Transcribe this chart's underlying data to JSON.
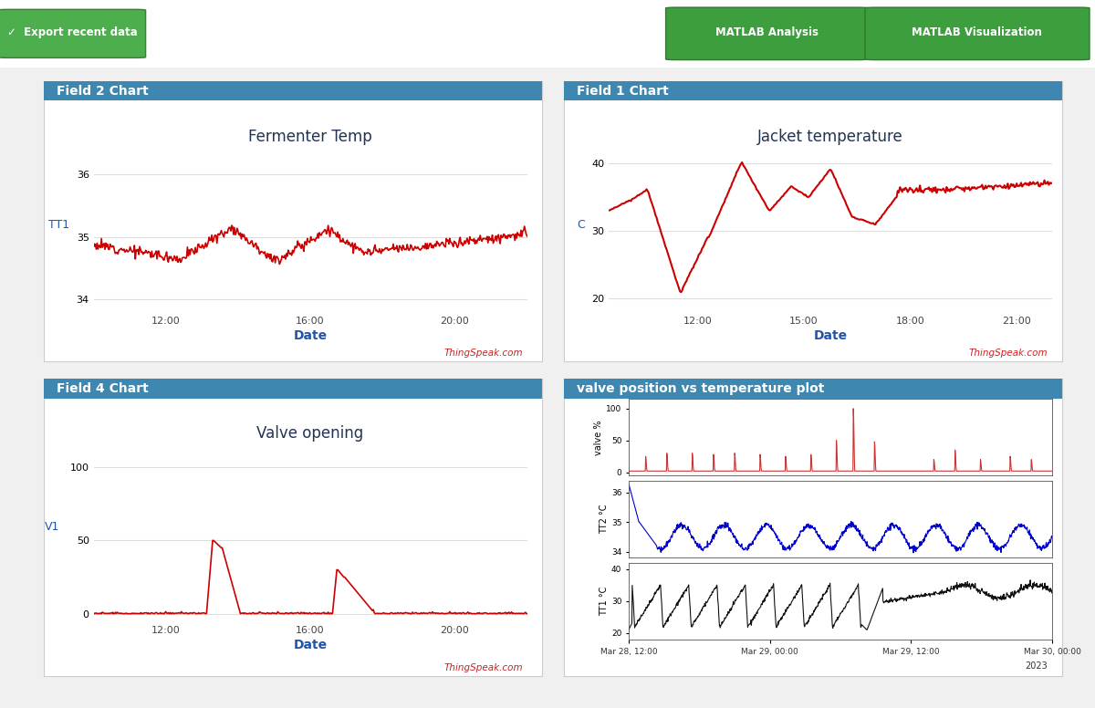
{
  "bg_color": "#f0f0f0",
  "panel_header_color": "#3d87b0",
  "panel_header_text_color": "#ffffff",
  "panel_bg_color": "#ffffff",
  "panel_border_color": "#cccccc",
  "export_btn_color": "#4cae4c",
  "matlab_btn_color": "#3d9e3d",
  "top_bar_color": "#ffffff",
  "chart1_title": "Fermenter Temp",
  "chart1_ylabel": "TT1",
  "chart1_xlabel": "Date",
  "chart1_panel": "Field 2 Chart",
  "chart1_ylim": [
    33.8,
    36.4
  ],
  "chart1_yticks": [
    34,
    35,
    36
  ],
  "chart1_xticks": [
    "12:00",
    "16:00",
    "20:00"
  ],
  "chart1_color": "#cc0000",
  "chart1_thingspeak": "ThingSpeak.com",
  "chart2_title": "Jacket temperature",
  "chart2_ylabel": "C",
  "chart2_xlabel": "Date",
  "chart2_panel": "Field 1 Chart",
  "chart2_ylim": [
    18,
    42
  ],
  "chart2_yticks": [
    20,
    30,
    40
  ],
  "chart2_xticks": [
    "12:00",
    "15:00",
    "18:00",
    "21:00"
  ],
  "chart2_color": "#cc0000",
  "chart2_thingspeak": "ThingSpeak.com",
  "chart3_title": "Valve opening",
  "chart3_ylabel": "V1",
  "chart3_xlabel": "Date",
  "chart3_panel": "Field 4 Chart",
  "chart3_ylim": [
    -5,
    115
  ],
  "chart3_yticks": [
    0,
    50,
    100
  ],
  "chart3_xticks": [
    "12:00",
    "16:00",
    "20:00"
  ],
  "chart3_color": "#cc0000",
  "chart3_thingspeak": "ThingSpeak.com",
  "chart4_panel": "valve position vs temperature plot",
  "chart4_ylabel1": "valve %",
  "chart4_ylabel2": "TT2 °C",
  "chart4_ylabel3": "TT1 °C",
  "chart4_color1": "#cc3333",
  "chart4_color2": "#0000cc",
  "chart4_color3": "#111111",
  "chart4_ylim1": [
    -5,
    115
  ],
  "chart4_ylim2": [
    33.8,
    36.4
  ],
  "chart4_ylim3": [
    18,
    42
  ],
  "chart4_yticks1": [
    0,
    50,
    100
  ],
  "chart4_yticks2": [
    34,
    35,
    36
  ],
  "chart4_yticks3": [
    20,
    30,
    40
  ],
  "chart4_xtick_labels": [
    "Mar 28, 12:00",
    "Mar 29, 00:00",
    "Mar 29, 12:00",
    "Mar 30, 00:00"
  ],
  "chart4_year": "2023"
}
